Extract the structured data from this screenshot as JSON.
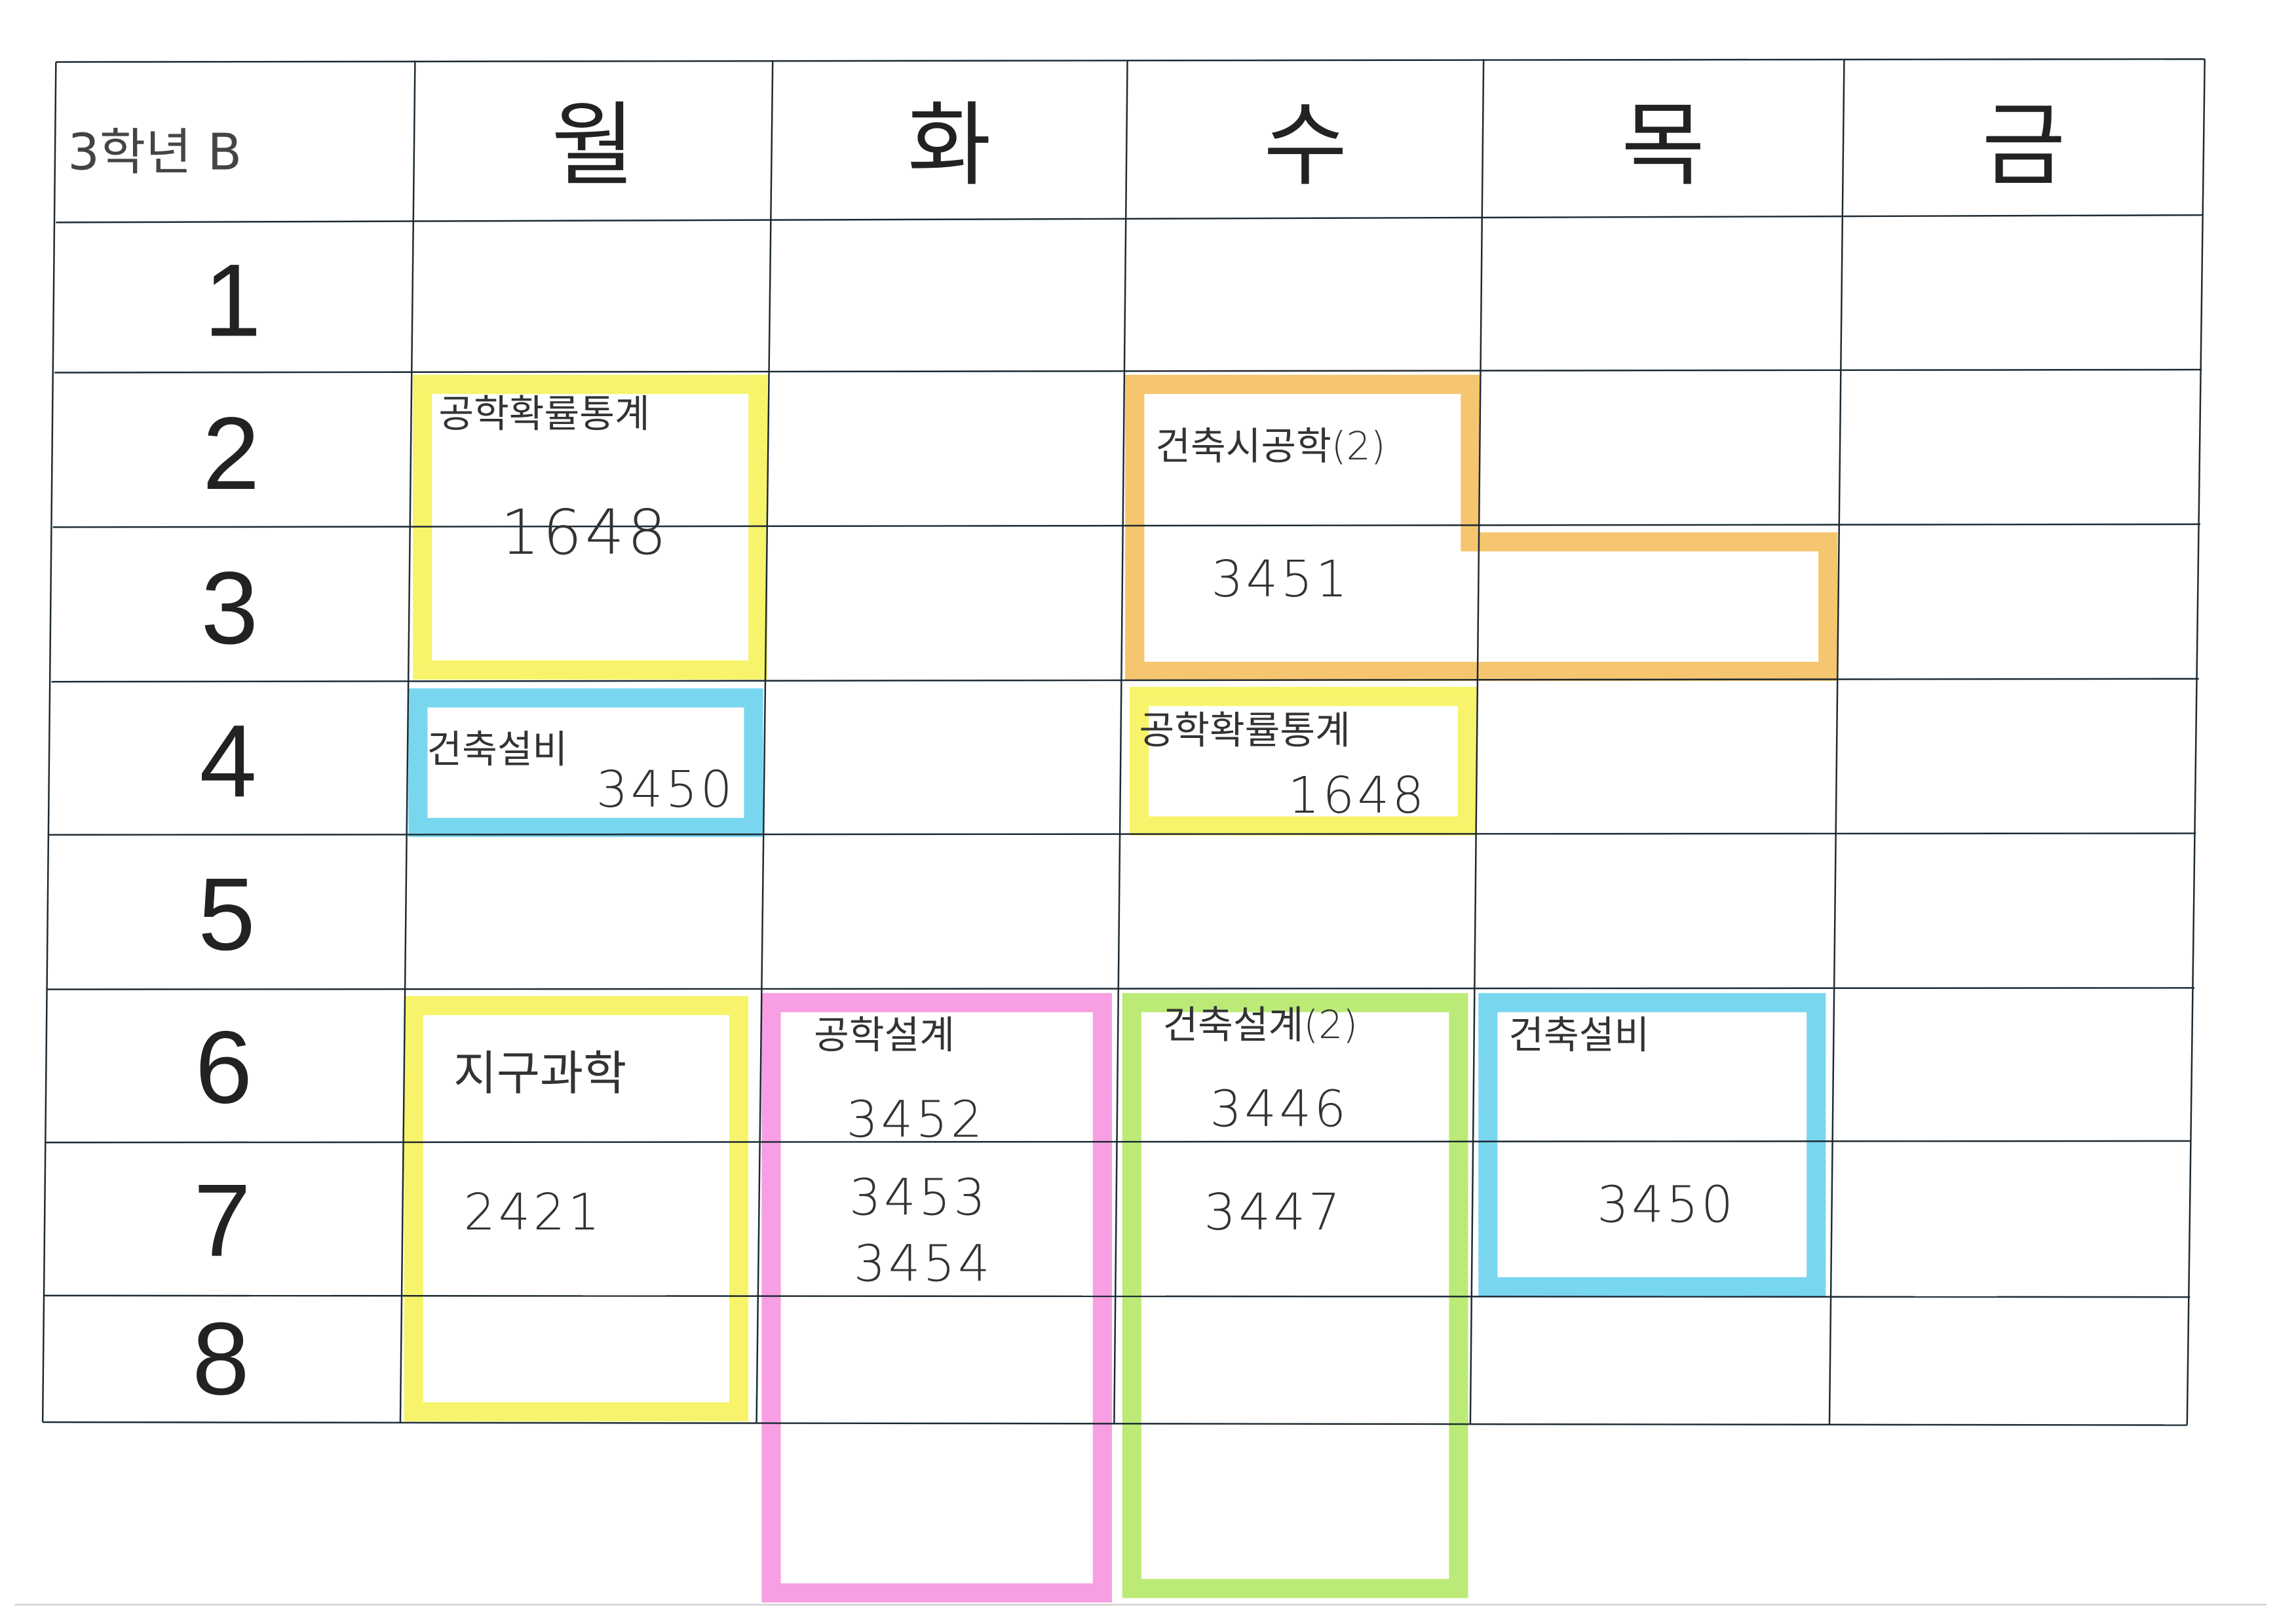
{
  "corner_label": "3학년 B",
  "days": [
    "월",
    "화",
    "수",
    "목",
    "금"
  ],
  "periods": [
    "1",
    "2",
    "3",
    "4",
    "5",
    "6",
    "7",
    "8"
  ],
  "colors": {
    "yellow": "#f4f03a",
    "blue": "#4cc8ea",
    "orange": "#f3b23f",
    "pink": "#f47fd8",
    "green": "#a6e34a"
  },
  "entries": [
    {
      "day": "월",
      "periods": "2-3",
      "subject": "공학확률통계",
      "rooms": [
        "1648"
      ],
      "color": "yellow"
    },
    {
      "day": "월",
      "periods": "4",
      "subject": "건축설비",
      "rooms": [
        "3450"
      ],
      "color": "blue"
    },
    {
      "day": "수-목",
      "periods": "2-3",
      "subject": "건축시공학(2)",
      "rooms": [
        "3451"
      ],
      "color": "orange"
    },
    {
      "day": "수",
      "periods": "4",
      "subject": "공학확률통계",
      "rooms": [
        "1648"
      ],
      "color": "yellow"
    },
    {
      "day": "월",
      "periods": "6-8",
      "subject": "지구과학",
      "rooms": [
        "2421"
      ],
      "color": "yellow"
    },
    {
      "day": "화",
      "periods": "6-8",
      "subject": "공학설계",
      "rooms": [
        "3452",
        "3453",
        "3454"
      ],
      "color": "pink"
    },
    {
      "day": "수",
      "periods": "6-8",
      "subject": "건축설계(2)",
      "rooms": [
        "3446",
        "3447"
      ],
      "color": "green"
    },
    {
      "day": "목",
      "periods": "6-7",
      "subject": "건축설비",
      "rooms": [
        "3450"
      ],
      "color": "blue"
    }
  ]
}
